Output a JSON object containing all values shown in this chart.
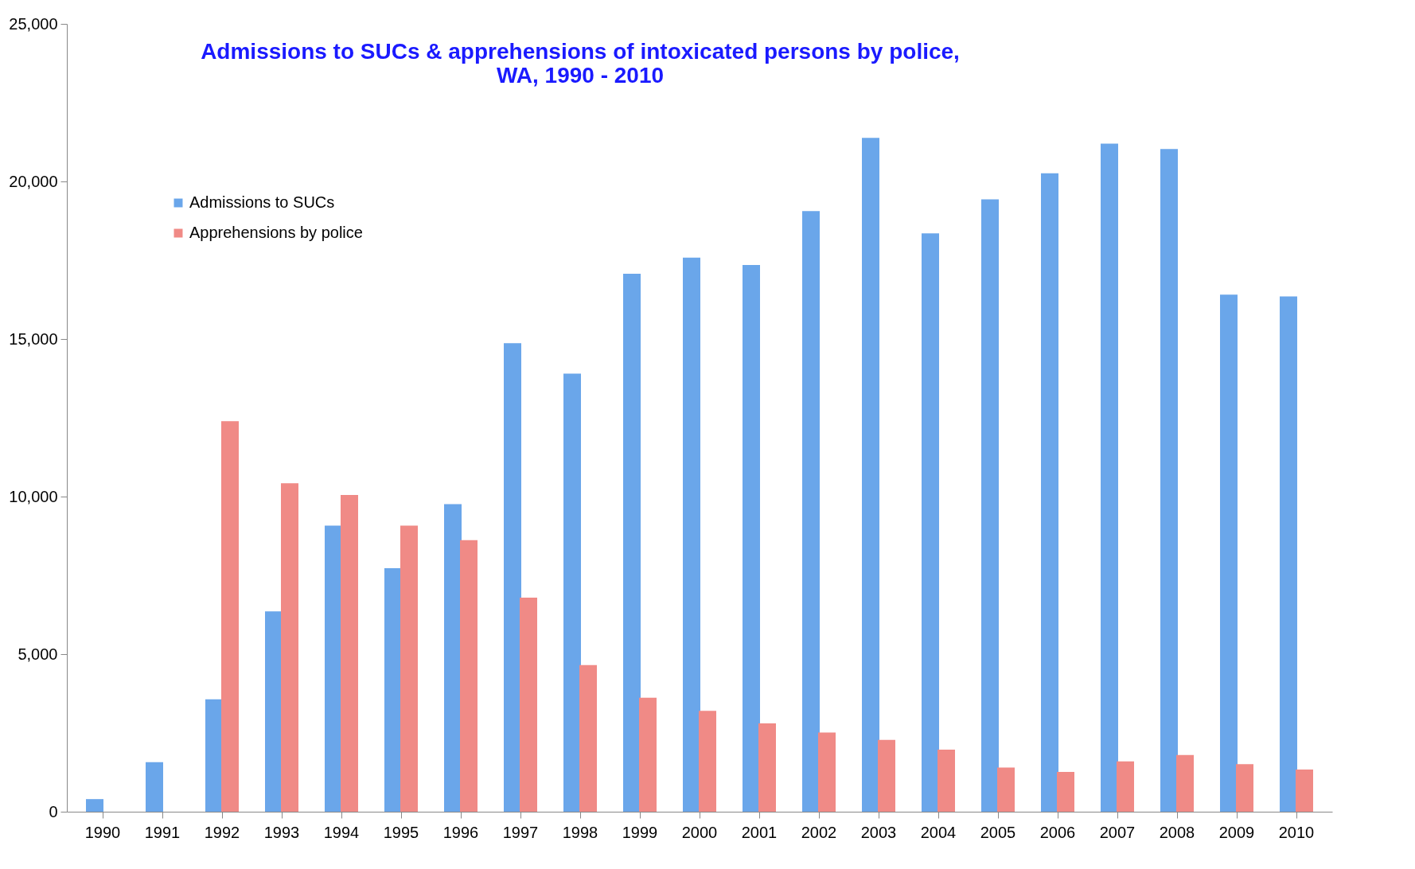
{
  "chart_data": {
    "type": "bar",
    "title": [
      "Admissions to SUCs & apprehensions of intoxicated persons by police,",
      "WA, 1990 - 2010"
    ],
    "categories": [
      "1990",
      "1991",
      "1992",
      "1993",
      "1994",
      "1995",
      "1996",
      "1997",
      "1998",
      "1999",
      "2000",
      "2001",
      "2002",
      "2003",
      "2004",
      "2005",
      "2006",
      "2007",
      "2008",
      "2009",
      "2010"
    ],
    "series": [
      {
        "name": "Admissions to SUCs",
        "color": "#6aa6ea",
        "values": [
          400,
          1570,
          3570,
          6360,
          9080,
          7730,
          9760,
          14870,
          13900,
          17070,
          17580,
          17350,
          19060,
          21380,
          18350,
          19430,
          20260,
          21200,
          21030,
          16410,
          16350
        ]
      },
      {
        "name": "Apprehensions by police",
        "color": "#f08a86",
        "values": [
          null,
          null,
          12390,
          10420,
          10050,
          9080,
          8620,
          6790,
          4650,
          3620,
          3200,
          2800,
          2510,
          2280,
          1970,
          1400,
          1260,
          1600,
          1800,
          1510,
          1340
        ]
      }
    ],
    "ylim": [
      0,
      25000
    ],
    "yticks": [
      0,
      {
        "value": 5000,
        "label": "5,000"
      },
      {
        "value": 10000,
        "label": "10,000"
      },
      {
        "value": 15000,
        "label": "15,000"
      },
      {
        "value": 20000,
        "label": "20,000"
      },
      {
        "value": 25000,
        "label": "25,000"
      }
    ],
    "grid": false,
    "legend": "top left"
  }
}
